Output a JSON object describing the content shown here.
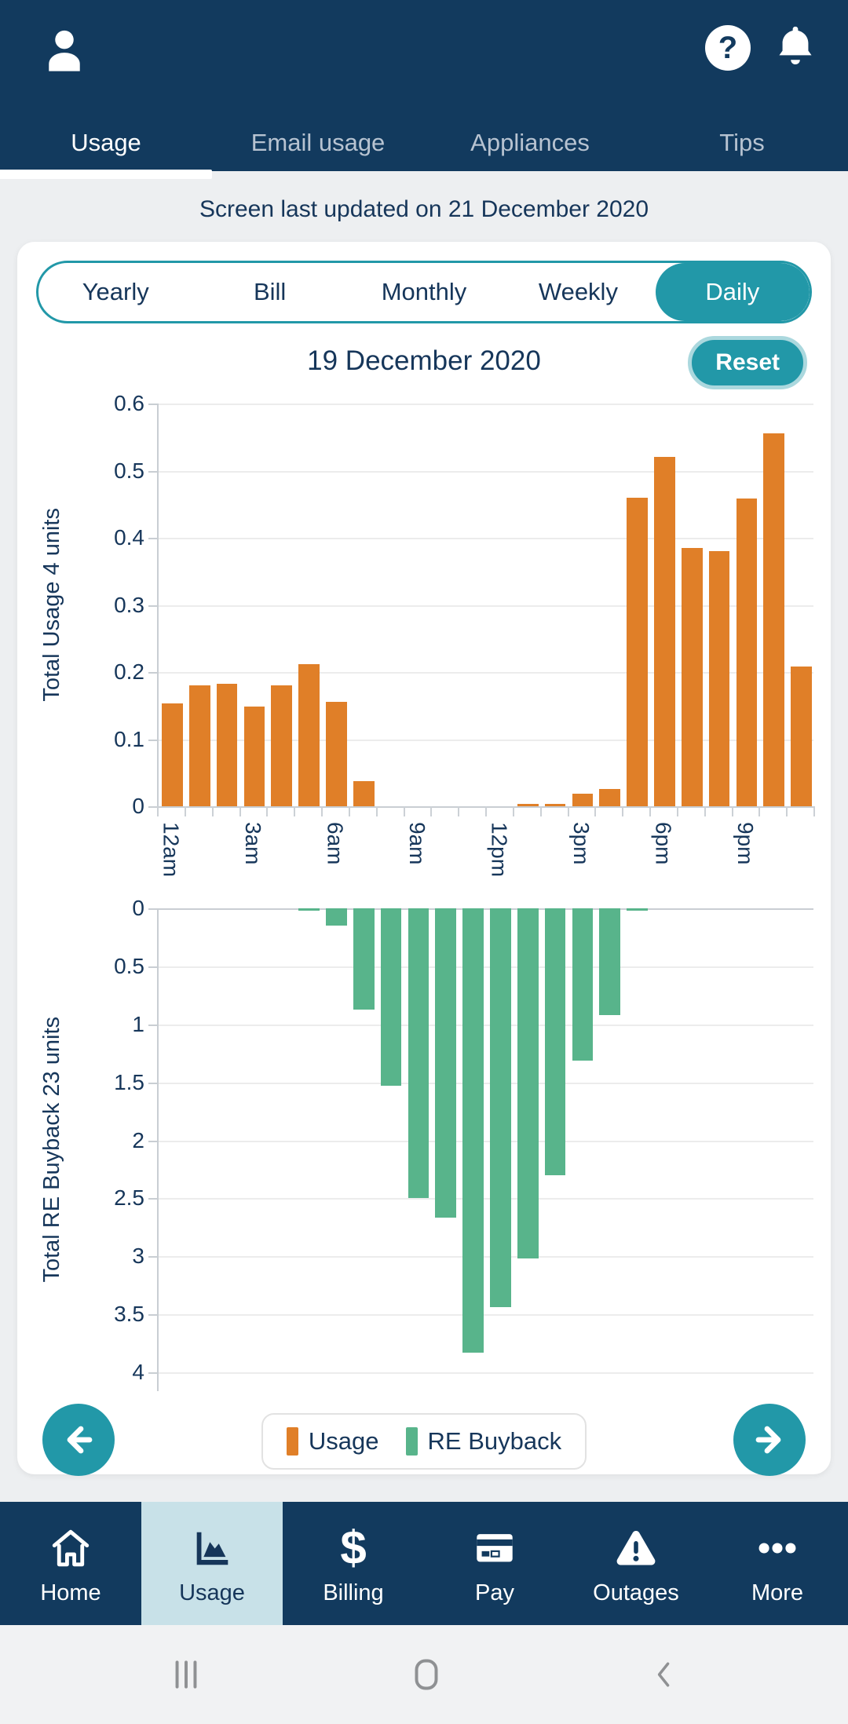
{
  "header": {
    "tabs": [
      {
        "label": "Usage",
        "active": true
      },
      {
        "label": "Email usage",
        "active": false
      },
      {
        "label": "Appliances",
        "active": false
      },
      {
        "label": "Tips",
        "active": false
      }
    ]
  },
  "status_line": "Screen last updated on 21 December 2020",
  "period_tabs": [
    {
      "label": "Yearly",
      "active": false
    },
    {
      "label": "Bill",
      "active": false
    },
    {
      "label": "Monthly",
      "active": false
    },
    {
      "label": "Weekly",
      "active": false
    },
    {
      "label": "Daily",
      "active": true
    }
  ],
  "chart_header": {
    "title": "19 December 2020",
    "reset_label": "Reset"
  },
  "chart_data": [
    {
      "type": "bar",
      "name": "Usage",
      "axis_title": "Total Usage 4 units",
      "color": "#e07f28",
      "direction": "up",
      "ylim": [
        0,
        0.6
      ],
      "yticks": [
        0,
        0.1,
        0.2,
        0.3,
        0.4,
        0.5,
        0.6
      ],
      "x": [
        "12am",
        "1am",
        "2am",
        "3am",
        "4am",
        "5am",
        "6am",
        "7am",
        "8am",
        "9am",
        "10am",
        "11am",
        "12pm",
        "1pm",
        "2pm",
        "3pm",
        "4pm",
        "5pm",
        "6pm",
        "7pm",
        "8pm",
        "9pm",
        "10pm",
        "11pm"
      ],
      "values": [
        0.153,
        0.18,
        0.183,
        0.149,
        0.18,
        0.212,
        0.155,
        0.037,
        0,
        0,
        0,
        0,
        0,
        0.003,
        0.004,
        0.019,
        0.026,
        0.46,
        0.52,
        0.385,
        0.38,
        0.458,
        0.555,
        0.208
      ]
    },
    {
      "type": "bar",
      "name": "RE Buyback",
      "axis_title": "Total RE Buyback 23 units",
      "color": "#58b48b",
      "direction": "down",
      "ylim": [
        0,
        4
      ],
      "yticks": [
        0,
        0.5,
        1,
        1.5,
        2,
        2.5,
        3,
        3.5,
        4
      ],
      "x": [
        "12am",
        "1am",
        "2am",
        "3am",
        "4am",
        "5am",
        "6am",
        "7am",
        "8am",
        "9am",
        "10am",
        "11am",
        "12pm",
        "1pm",
        "2pm",
        "3pm",
        "4pm",
        "5pm",
        "6pm",
        "7pm",
        "8pm",
        "9pm",
        "10pm",
        "11pm"
      ],
      "values": [
        0,
        0,
        0,
        0,
        0,
        0.02,
        0.15,
        0.87,
        1.53,
        2.5,
        2.67,
        3.83,
        3.44,
        3.02,
        2.3,
        1.31,
        0.92,
        0.02,
        0,
        0,
        0,
        0,
        0,
        0
      ]
    }
  ],
  "xaxis": {
    "total_slots": 24,
    "labels": [
      {
        "text": "12am",
        "slot": 0
      },
      {
        "text": "3am",
        "slot": 3
      },
      {
        "text": "6am",
        "slot": 6
      },
      {
        "text": "9am",
        "slot": 9
      },
      {
        "text": "12pm",
        "slot": 12
      },
      {
        "text": "3pm",
        "slot": 15
      },
      {
        "text": "6pm",
        "slot": 18
      },
      {
        "text": "9pm",
        "slot": 21
      }
    ]
  },
  "legend": [
    {
      "label": "Usage",
      "color": "#e07f28"
    },
    {
      "label": "RE Buyback",
      "color": "#58b48b"
    }
  ],
  "bottom_nav": [
    {
      "label": "Home",
      "icon": "home-icon",
      "active": false
    },
    {
      "label": "Usage",
      "icon": "usage-chart-icon",
      "active": true
    },
    {
      "label": "Billing",
      "icon": "dollar-icon",
      "active": false
    },
    {
      "label": "Pay",
      "icon": "credit-card-icon",
      "active": false
    },
    {
      "label": "Outages",
      "icon": "warning-icon",
      "active": false
    },
    {
      "label": "More",
      "icon": "ellipsis-icon",
      "active": false
    }
  ],
  "colors": {
    "navy": "#123a5e",
    "text_navy": "#16365a",
    "teal": "#2298a8",
    "orange": "#e07f28",
    "green": "#58b48b",
    "active_nav_bg": "#c8e1e8",
    "page_bg": "#edeff1"
  }
}
